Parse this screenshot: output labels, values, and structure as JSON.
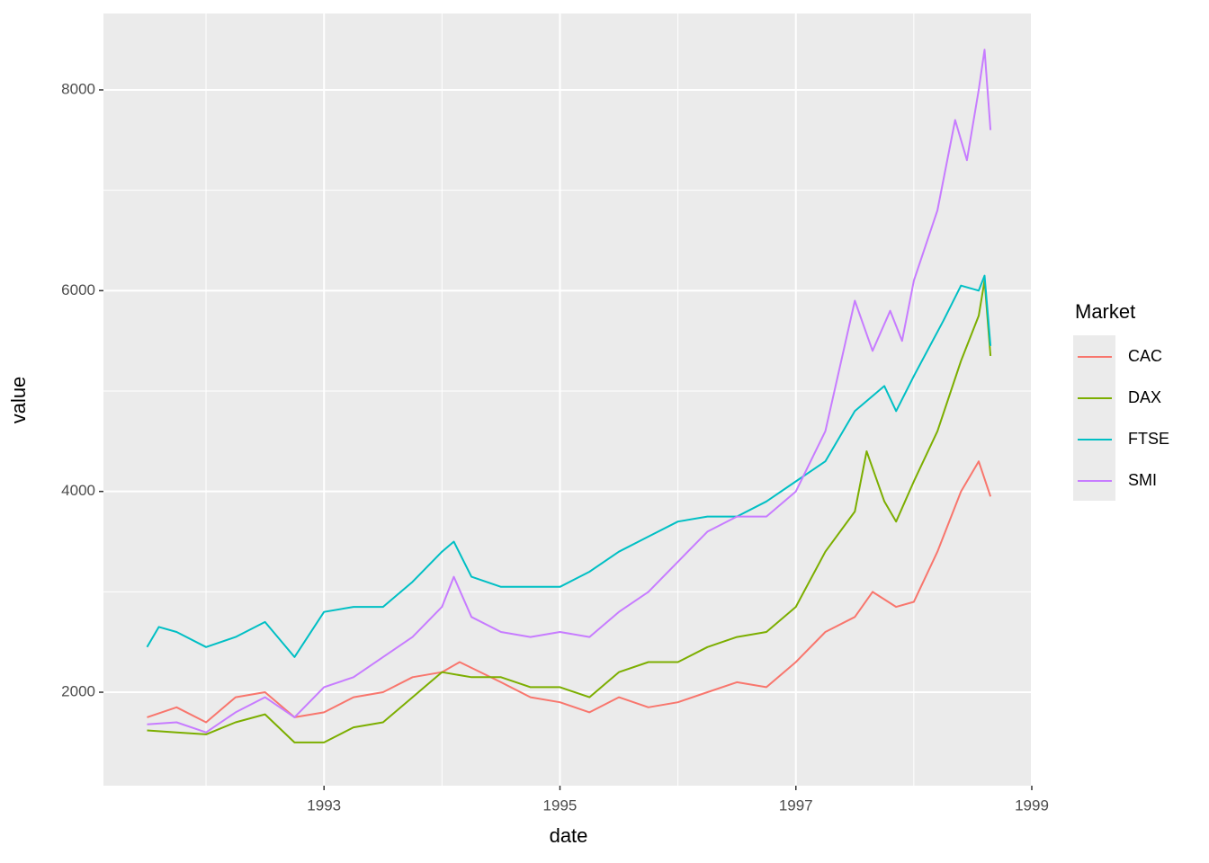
{
  "chart_data": {
    "type": "line",
    "x_label": "date",
    "y_label": "value",
    "legend_title": "Market",
    "legend_position": "right",
    "grid": true,
    "xlim": [
      1991.13,
      1999.0
    ],
    "ylim": [
      1069,
      8761
    ],
    "xticks": [
      1993,
      1995,
      1997,
      1999
    ],
    "yticks": [
      2000,
      4000,
      6000,
      8000
    ],
    "x_minor_grid": [
      1992,
      1994,
      1996,
      1998
    ],
    "y_minor_grid": [
      3000,
      5000,
      7000
    ],
    "series": [
      {
        "name": "CAC",
        "color": "#F8766D",
        "x": [
          1991.5,
          1991.75,
          1992.0,
          1992.25,
          1992.5,
          1992.75,
          1993.0,
          1993.25,
          1993.5,
          1993.75,
          1994.0,
          1994.15,
          1994.5,
          1994.75,
          1995.0,
          1995.25,
          1995.5,
          1995.75,
          1996.0,
          1996.25,
          1996.5,
          1996.75,
          1997.0,
          1997.25,
          1997.5,
          1997.65,
          1997.85,
          1998.0,
          1998.2,
          1998.4,
          1998.55,
          1998.65
        ],
        "values": [
          1750,
          1850,
          1700,
          1950,
          2000,
          1750,
          1800,
          1950,
          2000,
          2150,
          2200,
          2300,
          2100,
          1950,
          1900,
          1800,
          1950,
          1850,
          1900,
          2000,
          2100,
          2050,
          2300,
          2600,
          2750,
          3000,
          2850,
          2900,
          3400,
          4000,
          4300,
          3950
        ]
      },
      {
        "name": "DAX",
        "color": "#7CAE00",
        "x": [
          1991.5,
          1991.75,
          1992.0,
          1992.25,
          1992.5,
          1992.75,
          1993.0,
          1993.25,
          1993.5,
          1993.75,
          1994.0,
          1994.25,
          1994.5,
          1994.75,
          1995.0,
          1995.25,
          1995.5,
          1995.75,
          1996.0,
          1996.25,
          1996.5,
          1996.75,
          1997.0,
          1997.25,
          1997.5,
          1997.6,
          1997.75,
          1997.85,
          1998.0,
          1998.2,
          1998.4,
          1998.55,
          1998.6,
          1998.65
        ],
        "values": [
          1620,
          1600,
          1580,
          1700,
          1780,
          1500,
          1500,
          1650,
          1700,
          1950,
          2200,
          2150,
          2150,
          2050,
          2050,
          1950,
          2200,
          2300,
          2300,
          2450,
          2550,
          2600,
          2850,
          3400,
          3800,
          4400,
          3900,
          3700,
          4100,
          4600,
          5300,
          5750,
          6100,
          5350
        ]
      },
      {
        "name": "FTSE",
        "color": "#00BFC4",
        "x": [
          1991.5,
          1991.6,
          1991.75,
          1992.0,
          1992.25,
          1992.5,
          1992.75,
          1993.0,
          1993.25,
          1993.5,
          1993.75,
          1994.0,
          1994.1,
          1994.25,
          1994.5,
          1994.75,
          1995.0,
          1995.25,
          1995.5,
          1995.75,
          1996.0,
          1996.25,
          1996.5,
          1996.75,
          1997.0,
          1997.25,
          1997.5,
          1997.75,
          1997.85,
          1998.0,
          1998.25,
          1998.4,
          1998.55,
          1998.6,
          1998.65
        ],
        "values": [
          2450,
          2650,
          2600,
          2450,
          2550,
          2700,
          2350,
          2800,
          2850,
          2850,
          3100,
          3400,
          3500,
          3150,
          3050,
          3050,
          3050,
          3200,
          3400,
          3550,
          3700,
          3750,
          3750,
          3900,
          4100,
          4300,
          4800,
          5050,
          4800,
          5150,
          5700,
          6050,
          6000,
          6150,
          5450
        ]
      },
      {
        "name": "SMI",
        "color": "#C77CFF",
        "x": [
          1991.5,
          1991.75,
          1992.0,
          1992.25,
          1992.5,
          1992.75,
          1993.0,
          1993.25,
          1993.5,
          1993.75,
          1994.0,
          1994.1,
          1994.25,
          1994.5,
          1994.75,
          1995.0,
          1995.25,
          1995.5,
          1995.75,
          1996.0,
          1996.25,
          1996.5,
          1996.75,
          1997.0,
          1997.25,
          1997.5,
          1997.65,
          1997.8,
          1997.9,
          1998.0,
          1998.2,
          1998.35,
          1998.45,
          1998.55,
          1998.6,
          1998.65
        ],
        "values": [
          1680,
          1700,
          1600,
          1800,
          1950,
          1750,
          2050,
          2150,
          2350,
          2550,
          2850,
          3150,
          2750,
          2600,
          2550,
          2600,
          2550,
          2800,
          3000,
          3300,
          3600,
          3750,
          3750,
          4000,
          4600,
          5900,
          5400,
          5800,
          5500,
          6100,
          6800,
          7700,
          7300,
          8000,
          8400,
          7600
        ]
      }
    ]
  }
}
